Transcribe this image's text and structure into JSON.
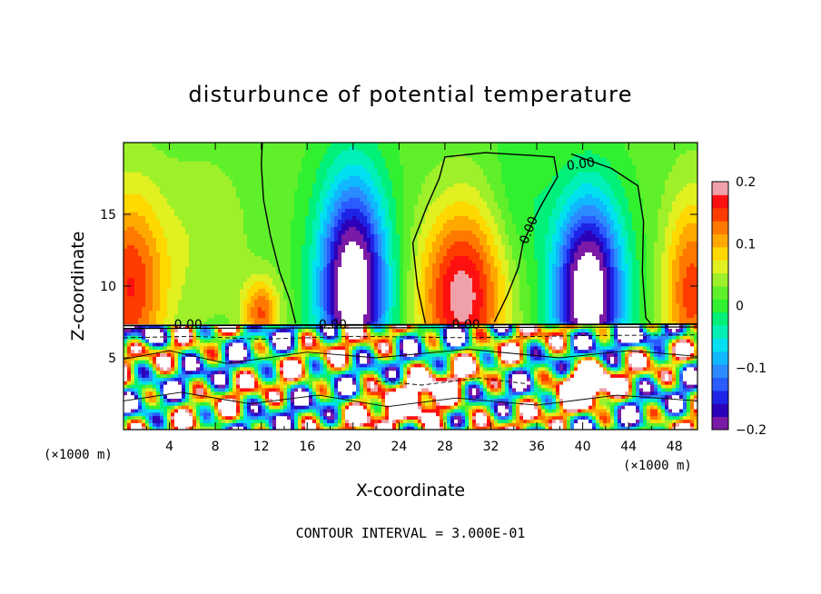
{
  "chart_data": {
    "type": "heatmap",
    "title": "disturbunce of potential temperature",
    "xlabel": "X-coordinate",
    "ylabel": "Z-coordinate",
    "x_unit": "(×1000 m)",
    "xlim": [
      0,
      50
    ],
    "ylim": [
      0,
      20
    ],
    "xticks": [
      4,
      8,
      12,
      16,
      20,
      24,
      28,
      32,
      36,
      40,
      44,
      48
    ],
    "yticks": [
      5,
      10,
      15
    ],
    "colorbar": {
      "range": [
        -0.2,
        0.2
      ],
      "ticks": [
        -0.2,
        -0.1,
        0,
        0.1,
        0.2
      ],
      "tick_labels": [
        "−0.2",
        "−0.1",
        "0",
        "0.1",
        "0.2"
      ],
      "colors": [
        "#7a1aa6",
        "#2c00b8",
        "#1e24e6",
        "#2a5cff",
        "#2c8cff",
        "#10b8ff",
        "#00e0f0",
        "#00f0b8",
        "#00f07a",
        "#30f030",
        "#5ff02a",
        "#9ef02a",
        "#e0f020",
        "#ffd800",
        "#ffa800",
        "#ff7800",
        "#ff3c00",
        "#ff1010",
        "#f0a0a8"
      ]
    },
    "contour_labels": [
      "0.00",
      "0.00",
      "0.00",
      "0.00",
      "0.00"
    ],
    "contour_interval_text": "CONTOUR INTERVAL = 3.000E-01",
    "interface_height": 7.3,
    "features": [
      {
        "kind": "cold-dome",
        "x": 20,
        "z": 10
      },
      {
        "kind": "cold-dome",
        "x": 40.5,
        "z": 9.6
      },
      {
        "kind": "warm-dome",
        "x": 29.5,
        "z": 10
      },
      {
        "kind": "warm-dome",
        "x": 0.5,
        "z": 10.5
      },
      {
        "kind": "warm-dome",
        "x": 12,
        "z": 8.5
      },
      {
        "kind": "warm-dome",
        "x": 49.5,
        "z": 10
      }
    ]
  }
}
